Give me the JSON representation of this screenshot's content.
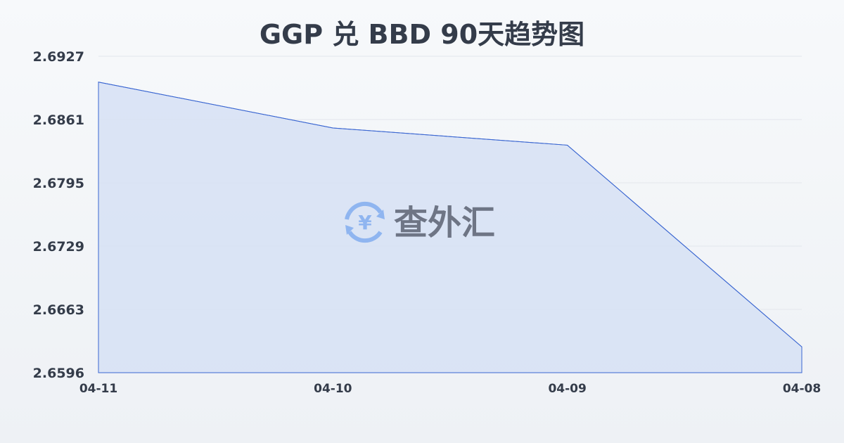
{
  "chart_data": {
    "type": "area",
    "title": "GGP 兑 BBD 90天趋势图",
    "categories": [
      "04-11",
      "04-10",
      "04-09",
      "04-08"
    ],
    "values": [
      2.69,
      2.6852,
      2.6834,
      2.6623
    ],
    "yticks": [
      "2.6927",
      "2.6861",
      "2.6795",
      "2.6729",
      "2.6663",
      "2.6596"
    ],
    "ylim": [
      2.6596,
      2.6927
    ],
    "xlabel": "",
    "ylabel": "",
    "grid": true,
    "colors": {
      "line": "#3a66d1",
      "fill": "#d6e1f5"
    }
  },
  "watermark": {
    "text": "查外汇",
    "icon": "yen-exchange-icon",
    "icon_color": "#8fb5f0"
  }
}
